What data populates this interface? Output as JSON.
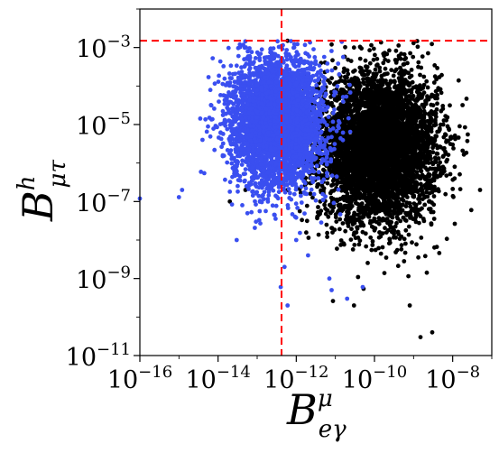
{
  "chart_data": {
    "type": "scatter",
    "title": "",
    "xlabel": {
      "base": "B",
      "sup": "μ",
      "sub": "eγ"
    },
    "ylabel": {
      "base": "B",
      "sup": "h",
      "sub": "μτ"
    },
    "xscale": "log",
    "yscale": "log",
    "xlim": [
      1e-16,
      1e-07
    ],
    "ylim": [
      1e-11,
      0.01
    ],
    "x_ticks": [
      {
        "base": "10",
        "exp": "−16",
        "value": 1e-16
      },
      {
        "base": "10",
        "exp": "−14",
        "value": 1e-14
      },
      {
        "base": "10",
        "exp": "−12",
        "value": 1e-12
      },
      {
        "base": "10",
        "exp": "−10",
        "value": 1e-10
      },
      {
        "base": "10",
        "exp": "−8",
        "value": 1e-08
      }
    ],
    "y_ticks": [
      {
        "base": "10",
        "exp": "−11",
        "value": 1e-11
      },
      {
        "base": "10",
        "exp": "−9",
        "value": 1e-09
      },
      {
        "base": "10",
        "exp": "−7",
        "value": 1e-07
      },
      {
        "base": "10",
        "exp": "−5",
        "value": 1e-05
      },
      {
        "base": "10",
        "exp": "−3",
        "value": 0.001
      }
    ],
    "grid": false,
    "reference_lines": [
      {
        "orientation": "vertical",
        "value": 4.2e-13,
        "color": "#ff0000",
        "style": "dashed"
      },
      {
        "orientation": "horizontal",
        "value": 0.0015,
        "color": "#ff0000",
        "style": "dashed"
      }
    ],
    "series": [
      {
        "color": "#000000",
        "description_of_cloud": "dense cloud",
        "center": {
          "log10_x": -9.9,
          "log10_y": -5.6
        },
        "spread": {
          "log10_x": 0.75,
          "log10_y": 0.95
        },
        "range": {
          "log10_x": [
            -12.0,
            -7.6
          ],
          "log10_y": [
            -10.6,
            -2.8
          ]
        },
        "n_points": 5200,
        "points": [
          [
            3e-09,
            4e-11
          ],
          [
            1.5e-09,
            3e-11
          ],
          [
            3e-11,
            2e-10
          ],
          [
            2e-10,
            3.5e-09
          ],
          [
            8e-10,
            2e-10
          ],
          [
            5e-08,
            2e-07
          ],
          [
            3e-08,
            6e-08
          ],
          [
            1e-08,
            3e-06
          ],
          [
            5e-14,
            2e-07
          ],
          [
            2e-14,
            1e-07
          ],
          [
            6e-13,
            2e-07
          ],
          [
            4e-12,
            5e-07
          ],
          [
            6e-13,
            0.0015
          ],
          [
            8e-12,
            0.0012
          ],
          [
            3e-11,
            0.001
          ],
          [
            1e-09,
            0.0013
          ]
        ]
      },
      {
        "color": "#3a4ff0",
        "description_of_cloud": "dense cloud",
        "center": {
          "log10_x": -12.5,
          "log10_y": -4.9
        },
        "spread": {
          "log10_x": 0.6,
          "log10_y": 0.85
        },
        "range": {
          "log10_x": [
            -16.0,
            -10.6
          ],
          "log10_y": [
            -9.9,
            -2.8
          ]
        },
        "n_points": 3800,
        "points": [
          [
            1e-16,
            1.2e-07
          ],
          [
            1e-15,
            1.3e-07
          ],
          [
            1.2e-15,
            2e-07
          ],
          [
            6e-15,
            1.5e-05
          ],
          [
            4e-15,
            4e-06
          ],
          [
            3e-14,
            1e-08
          ],
          [
            2e-14,
            1.8e-07
          ],
          [
            5e-13,
            2e-09
          ],
          [
            4e-13,
            6e-10
          ],
          [
            6e-13,
            2e-10
          ],
          [
            8e-12,
            5e-10
          ],
          [
            2e-11,
            3e-10
          ],
          [
            5e-11,
            6e-10
          ],
          [
            7e-12,
            1e-09
          ],
          [
            2e-12,
            4e-09
          ],
          [
            1e-12,
            1e-08
          ]
        ]
      }
    ]
  }
}
